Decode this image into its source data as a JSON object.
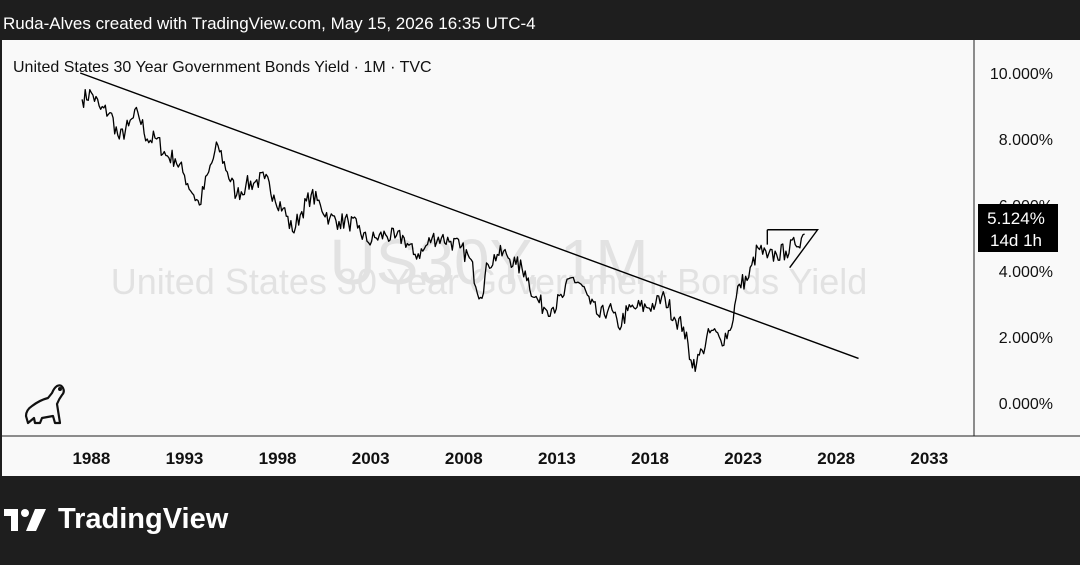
{
  "header": {
    "text": "Ruda-Alves created with TradingView.com, May 15, 2026 16:35 UTC-4"
  },
  "chart_title": "United States 30 Year Government Bonds Yield · 1M · TVC",
  "watermark": {
    "symbol": "US30Y, 1M",
    "name": "United States 30 Year Government Bonds Yield"
  },
  "price_label": {
    "value": "5.124%",
    "countdown": "14d 1h"
  },
  "footer": {
    "brand": "TradingView"
  },
  "colors": {
    "background": "#1e1e1e",
    "panel": "#f9f9f9",
    "series": "#000000",
    "watermark": "#e2e2e2"
  },
  "icons": [
    "dinosaur-logo-icon",
    "tradingview-logo-icon"
  ],
  "chart_data": {
    "type": "line",
    "y_tick_labels": [
      "10.000%",
      "8.000%",
      "6.000%",
      "4.000%",
      "2.000%",
      "0.000%"
    ],
    "y_ticks": [
      10,
      8,
      6,
      4,
      2,
      0
    ],
    "x_tick_labels": [
      "1988",
      "1993",
      "1998",
      "2003",
      "2008",
      "2013",
      "2018",
      "2023",
      "2028",
      "2033"
    ],
    "x_ticks": [
      1988,
      1993,
      1998,
      2003,
      2008,
      2013,
      2018,
      2023,
      2028,
      2033
    ],
    "xlim": [
      1983.2,
      2035.4
    ],
    "ylim": [
      -1.0,
      11.0
    ],
    "grid": false,
    "series": [
      {
        "x": [
          1987.5,
          1988.0,
          1988.5,
          1989.0,
          1989.5,
          1990.0,
          1990.5,
          1991.0,
          1991.5,
          1992.0,
          1992.5,
          1993.0,
          1993.5,
          1993.8,
          1994.3,
          1994.8,
          1995.3,
          1995.8,
          1996.3,
          1996.8,
          1997.3,
          1997.8,
          1998.3,
          1998.8,
          1999.3,
          1999.8,
          2000.3,
          2000.8,
          2001.3,
          2001.8,
          2002.3,
          2002.8,
          2003.3,
          2003.8,
          2004.3,
          2004.8,
          2005.3,
          2005.8,
          2006.3,
          2006.8,
          2007.3,
          2007.8,
          2008.3,
          2008.9,
          2009.3,
          2009.8,
          2010.3,
          2010.8,
          2011.3,
          2011.8,
          2012.3,
          2012.8,
          2013.3,
          2013.8,
          2014.3,
          2014.8,
          2015.3,
          2015.8,
          2016.3,
          2016.8,
          2017.3,
          2017.8,
          2018.3,
          2018.8,
          2019.3,
          2019.8,
          2020.2,
          2020.5,
          2020.8,
          2021.3,
          2021.8,
          2022.3,
          2022.8,
          2023.3,
          2023.8,
          2024.3,
          2024.8,
          2025.3,
          2025.8,
          2026.3
        ],
        "y": [
          9.2,
          9.4,
          8.9,
          8.8,
          8.0,
          8.4,
          8.8,
          8.0,
          8.0,
          7.5,
          7.4,
          6.9,
          6.3,
          6.0,
          7.0,
          7.8,
          7.0,
          6.3,
          6.6,
          6.7,
          6.8,
          6.3,
          5.9,
          5.2,
          5.8,
          6.3,
          6.0,
          5.6,
          5.5,
          5.5,
          5.3,
          4.9,
          5.0,
          5.1,
          5.0,
          5.0,
          4.5,
          4.6,
          5.0,
          5.0,
          4.9,
          4.7,
          4.4,
          3.2,
          4.2,
          4.5,
          4.5,
          4.2,
          4.0,
          3.2,
          2.9,
          2.9,
          3.2,
          3.8,
          3.6,
          3.0,
          2.6,
          2.9,
          2.3,
          2.8,
          2.9,
          2.9,
          3.0,
          3.2,
          2.6,
          2.3,
          1.3,
          1.2,
          1.6,
          2.2,
          1.9,
          2.2,
          3.6,
          3.8,
          4.7,
          4.4,
          4.5,
          4.6,
          4.8,
          5.12
        ]
      }
    ],
    "last_value": 5.124
  }
}
